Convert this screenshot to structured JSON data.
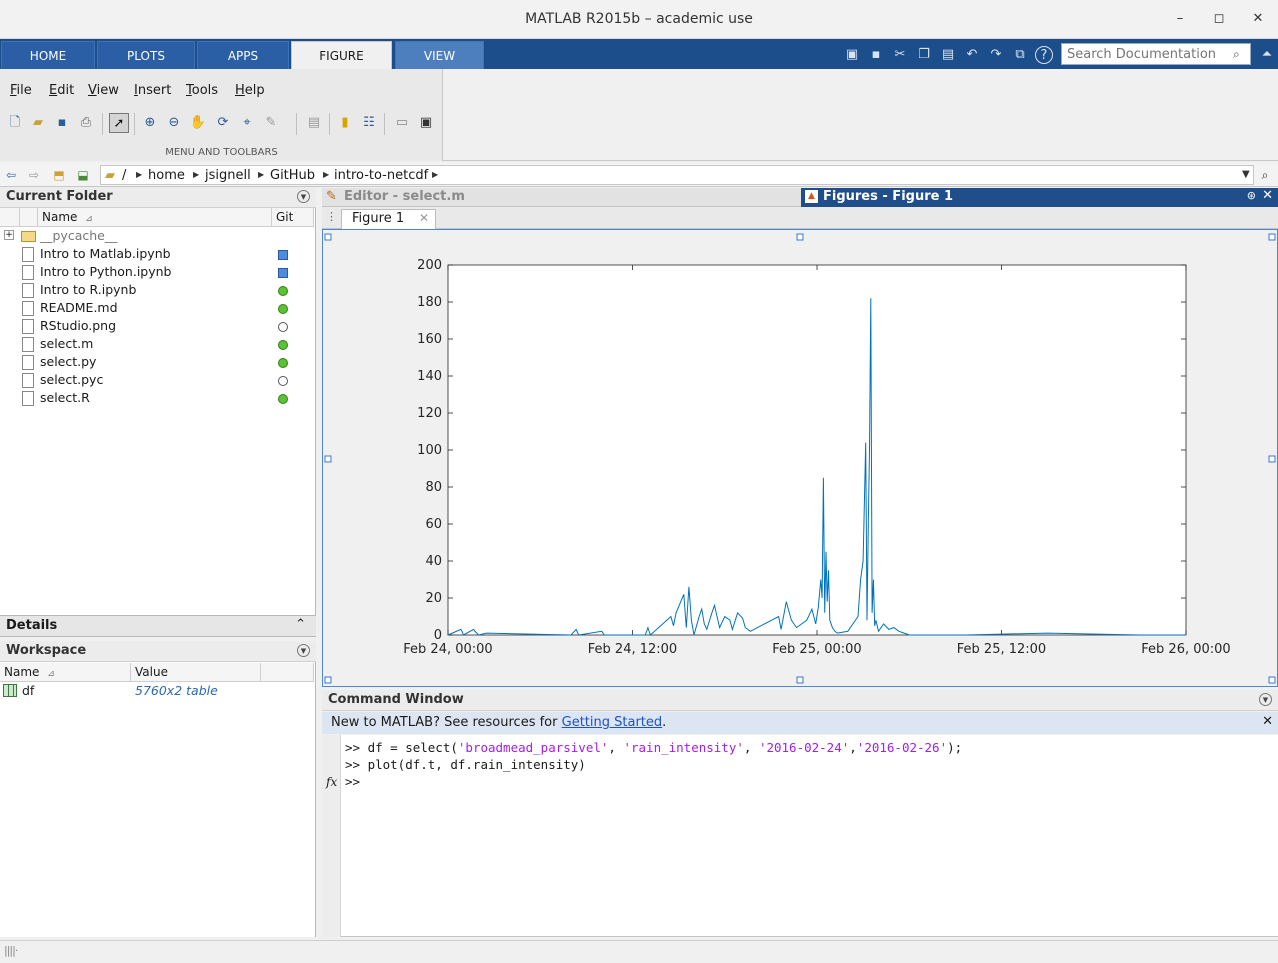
{
  "window": {
    "title": "MATLAB R2015b – academic use"
  },
  "ribbon": {
    "tabs": [
      "HOME",
      "PLOTS",
      "APPS",
      "FIGURE",
      "VIEW"
    ],
    "active_tab": "FIGURE",
    "search_placeholder": "Search Documentation",
    "menu": [
      "File",
      "Edit",
      "View",
      "Insert",
      "Tools",
      "Help"
    ],
    "section_caption": "MENU AND TOOLBARS"
  },
  "path": {
    "root": "/",
    "segments": [
      "home",
      "jsignell",
      "GitHub",
      "intro-to-netcdf"
    ]
  },
  "current_folder": {
    "title": "Current Folder",
    "col_name": "Name",
    "col_git": "Git",
    "files": [
      {
        "name": "__pycache__",
        "git": "none"
      },
      {
        "name": "Intro to Matlab.ipynb",
        "git": "added"
      },
      {
        "name": "Intro to Python.ipynb",
        "git": "added"
      },
      {
        "name": "Intro to R.ipynb",
        "git": "clean"
      },
      {
        "name": "README.md",
        "git": "clean"
      },
      {
        "name": "RStudio.png",
        "git": "untracked"
      },
      {
        "name": "select.m",
        "git": "clean"
      },
      {
        "name": "select.py",
        "git": "clean"
      },
      {
        "name": "select.pyc",
        "git": "untracked"
      },
      {
        "name": "select.R",
        "git": "clean"
      }
    ]
  },
  "details": {
    "title": "Details"
  },
  "workspace": {
    "title": "Workspace",
    "col_name": "Name",
    "col_value": "Value",
    "vars": [
      {
        "name": "df",
        "value": "5760x2 table"
      }
    ]
  },
  "editor": {
    "title": "Editor - select.m"
  },
  "figures": {
    "title": "Figures - Figure 1",
    "tab_label": "Figure 1"
  },
  "command_window": {
    "title": "Command Window",
    "banner_text": "New to MATLAB? See resources for ",
    "banner_link": "Getting Started",
    "banner_end": ".",
    "prompt": ">>",
    "lines": [
      ">> df = select('broadmead_parsivel', 'rain_intensity', '2016-02-24','2016-02-26');",
      ">> plot(df.t, df.rain_intensity)",
      ">>"
    ]
  },
  "colors": {
    "line": "#0072bd",
    "accent": "#1c4e8c"
  },
  "chart_data": {
    "type": "line",
    "title": "",
    "xlabel": "",
    "ylabel": "",
    "xlim": [
      "2016-02-24 00:00",
      "2016-02-26 00:00"
    ],
    "ylim": [
      0,
      200
    ],
    "y_ticks": [
      0,
      20,
      40,
      60,
      80,
      100,
      120,
      140,
      160,
      180,
      200
    ],
    "x_tick_labels": [
      "Feb 24, 00:00",
      "Feb 24, 12:00",
      "Feb 25, 00:00",
      "Feb 25, 12:00",
      "Feb 26, 00:00"
    ],
    "x_ticks": [
      "2016-02-24 00:00",
      "2016-02-24 12:00",
      "2016-02-25 00:00",
      "2016-02-25 12:00",
      "2016-02-26 00:00"
    ],
    "grid": false,
    "series": [
      {
        "x": [
          "2016-02-24 00:00",
          "2016-02-24 00:50",
          "2016-02-24 00:55",
          "2016-02-24 01:00",
          "2016-02-24 01:40",
          "2016-02-24 01:45",
          "2016-02-24 02:00",
          "2016-02-24 02:30",
          "2016-02-24 08:00",
          "2016-02-24 08:20",
          "2016-02-24 08:30",
          "2016-02-24 10:00",
          "2016-02-24 10:10",
          "2016-02-24 12:50",
          "2016-02-24 13:00",
          "2016-02-24 13:10",
          "2016-02-24 14:30",
          "2016-02-24 14:40",
          "2016-02-24 14:50",
          "2016-02-24 15:20",
          "2016-02-24 15:30",
          "2016-02-24 15:40",
          "2016-02-24 15:50",
          "2016-02-24 16:00",
          "2016-02-24 16:20",
          "2016-02-24 16:30",
          "2016-02-24 16:40",
          "2016-02-24 16:50",
          "2016-02-24 17:10",
          "2016-02-24 17:20",
          "2016-02-24 17:40",
          "2016-02-24 18:00",
          "2016-02-24 18:20",
          "2016-02-24 18:30",
          "2016-02-24 18:50",
          "2016-02-24 19:10",
          "2016-02-24 19:20",
          "2016-02-24 19:40",
          "2016-02-24 21:30",
          "2016-02-24 21:40",
          "2016-02-24 22:00",
          "2016-02-24 22:20",
          "2016-02-24 22:40",
          "2016-02-24 23:20",
          "2016-02-24 23:40",
          "2016-02-24 23:55",
          "2016-02-25 00:05",
          "2016-02-25 00:15",
          "2016-02-25 00:20",
          "2016-02-25 00:25",
          "2016-02-25 00:30",
          "2016-02-25 00:35",
          "2016-02-25 00:40",
          "2016-02-25 00:45",
          "2016-02-25 00:50",
          "2016-02-25 01:00",
          "2016-02-25 01:10",
          "2016-02-25 01:20",
          "2016-02-25 02:00",
          "2016-02-25 02:40",
          "2016-02-25 02:50",
          "2016-02-25 03:00",
          "2016-02-25 03:10",
          "2016-02-25 03:15",
          "2016-02-25 03:20",
          "2016-02-25 03:25",
          "2016-02-25 03:30",
          "2016-02-25 03:35",
          "2016-02-25 03:40",
          "2016-02-25 03:45",
          "2016-02-25 03:50",
          "2016-02-25 04:00",
          "2016-02-25 04:20",
          "2016-02-25 04:40",
          "2016-02-25 05:00",
          "2016-02-25 05:20",
          "2016-02-25 05:40",
          "2016-02-25 06:00",
          "2016-02-25 09:40",
          "2016-02-25 15:00",
          "2016-02-25 21:00",
          "2016-02-26 00:00"
        ],
        "values": [
          0,
          3,
          2,
          0,
          3,
          2,
          0,
          1,
          0,
          3,
          0,
          2,
          0,
          0,
          4,
          0,
          10,
          5,
          12,
          22,
          4,
          26,
          8,
          0,
          10,
          14,
          6,
          3,
          12,
          16,
          4,
          10,
          8,
          3,
          12,
          9,
          4,
          2,
          10,
          3,
          18,
          8,
          4,
          8,
          14,
          6,
          15,
          30,
          20,
          85,
          12,
          45,
          18,
          35,
          8,
          4,
          2,
          1,
          2,
          10,
          30,
          40,
          104,
          8,
          60,
          100,
          182,
          12,
          30,
          5,
          8,
          2,
          6,
          3,
          4,
          2,
          1,
          0,
          0,
          1,
          0,
          0
        ]
      }
    ]
  }
}
